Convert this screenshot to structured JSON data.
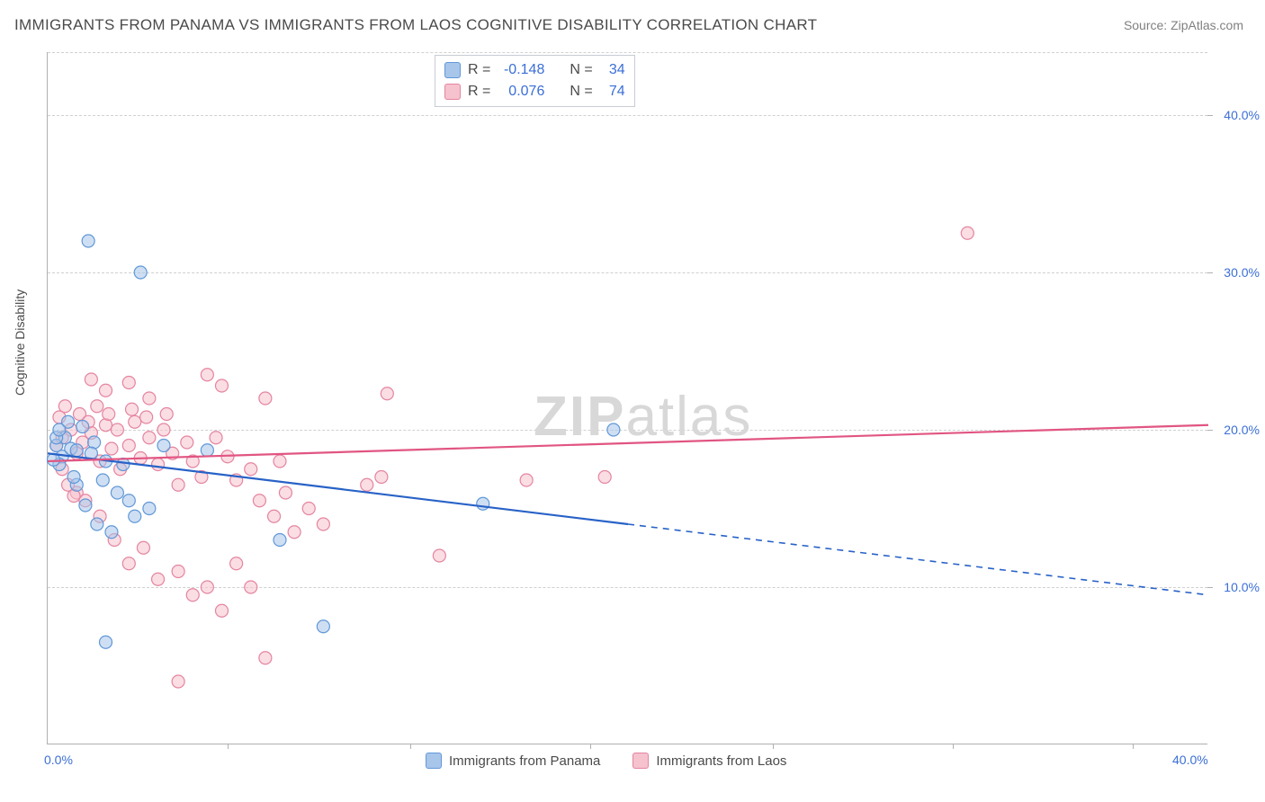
{
  "title": "IMMIGRANTS FROM PANAMA VS IMMIGRANTS FROM LAOS COGNITIVE DISABILITY CORRELATION CHART",
  "source": "Source: ZipAtlas.com",
  "ylabel": "Cognitive Disability",
  "watermark_zip": "ZIP",
  "watermark_atlas": "atlas",
  "xlim": [
    0,
    40
  ],
  "ylim": [
    0,
    44
  ],
  "xticks": [
    {
      "pos": 0,
      "label": "0.0%"
    },
    {
      "pos": 40,
      "label": "40.0%"
    }
  ],
  "xtick_marks": [
    6.2,
    12.5,
    18.7,
    25,
    31.2,
    37.4
  ],
  "yticks": [
    {
      "pos": 10,
      "label": "10.0%"
    },
    {
      "pos": 20,
      "label": "20.0%"
    },
    {
      "pos": 30,
      "label": "30.0%"
    },
    {
      "pos": 40,
      "label": "40.0%"
    }
  ],
  "gridlines": [
    10,
    20,
    30,
    40,
    44
  ],
  "series": [
    {
      "name": "Immigrants from Panama",
      "key": "panama",
      "color_fill": "#a8c5ea",
      "color_stroke": "#6098d8",
      "line_color": "#2862c7",
      "r_label": "R =",
      "r_value": "-0.148",
      "n_label": "N =",
      "n_value": "34",
      "regression": {
        "x1": 0,
        "y1": 18.5,
        "x2_solid": 20,
        "y2_solid": 14.0,
        "x2": 40,
        "y2": 9.5
      },
      "points": [
        [
          1.4,
          32.0
        ],
        [
          3.2,
          30.0
        ],
        [
          0.3,
          19.0
        ],
        [
          0.5,
          18.3
        ],
        [
          0.6,
          19.5
        ],
        [
          0.4,
          17.8
        ],
        [
          0.8,
          18.8
        ],
        [
          1.2,
          20.2
        ],
        [
          1.6,
          19.2
        ],
        [
          2.0,
          18.0
        ],
        [
          2.4,
          16.0
        ],
        [
          2.8,
          15.5
        ],
        [
          3.5,
          15.0
        ],
        [
          1.0,
          16.5
        ],
        [
          1.3,
          15.2
        ],
        [
          1.7,
          14.0
        ],
        [
          2.2,
          13.5
        ],
        [
          2.6,
          17.8
        ],
        [
          0.7,
          20.5
        ],
        [
          0.9,
          17.0
        ],
        [
          1.5,
          18.5
        ],
        [
          1.9,
          16.8
        ],
        [
          3.0,
          14.5
        ],
        [
          4.0,
          19.0
        ],
        [
          5.5,
          18.7
        ],
        [
          8.0,
          13.0
        ],
        [
          9.5,
          7.5
        ],
        [
          2.0,
          6.5
        ],
        [
          15.0,
          15.3
        ],
        [
          19.5,
          20.0
        ],
        [
          1.0,
          18.7
        ],
        [
          0.3,
          19.5
        ],
        [
          0.2,
          18.1
        ],
        [
          0.4,
          20.0
        ]
      ]
    },
    {
      "name": "Immigrants from Laos",
      "key": "laos",
      "color_fill": "#f5c2ce",
      "color_stroke": "#e584a0",
      "line_color": "#e15582",
      "r_label": "R =",
      "r_value": "0.076",
      "n_label": "N =",
      "n_value": "74",
      "regression": {
        "x1": 0,
        "y1": 18.0,
        "x2_solid": 40,
        "y2_solid": 20.3,
        "x2": 40,
        "y2": 20.3
      },
      "points": [
        [
          31.7,
          32.5
        ],
        [
          1.5,
          23.2
        ],
        [
          2.0,
          22.5
        ],
        [
          2.8,
          23.0
        ],
        [
          3.5,
          22.0
        ],
        [
          5.5,
          23.5
        ],
        [
          6.0,
          22.8
        ],
        [
          7.5,
          22.0
        ],
        [
          11.7,
          22.3
        ],
        [
          0.3,
          19.0
        ],
        [
          0.5,
          19.5
        ],
        [
          0.8,
          20.0
        ],
        [
          1.0,
          18.5
        ],
        [
          1.2,
          19.2
        ],
        [
          1.5,
          19.8
        ],
        [
          1.8,
          18.0
        ],
        [
          2.0,
          20.3
        ],
        [
          2.2,
          18.8
        ],
        [
          2.5,
          17.5
        ],
        [
          2.8,
          19.0
        ],
        [
          3.0,
          20.5
        ],
        [
          3.2,
          18.2
        ],
        [
          3.5,
          19.5
        ],
        [
          3.8,
          17.8
        ],
        [
          4.0,
          20.0
        ],
        [
          4.3,
          18.5
        ],
        [
          4.5,
          16.5
        ],
        [
          4.8,
          19.2
        ],
        [
          5.0,
          18.0
        ],
        [
          5.3,
          17.0
        ],
        [
          5.8,
          19.5
        ],
        [
          6.2,
          18.3
        ],
        [
          6.5,
          16.8
        ],
        [
          7.0,
          17.5
        ],
        [
          7.3,
          15.5
        ],
        [
          7.8,
          14.5
        ],
        [
          8.2,
          16.0
        ],
        [
          8.5,
          13.5
        ],
        [
          9.0,
          15.0
        ],
        [
          9.5,
          14.0
        ],
        [
          11.0,
          16.5
        ],
        [
          11.5,
          17.0
        ],
        [
          13.5,
          12.0
        ],
        [
          16.5,
          16.8
        ],
        [
          19.2,
          17.0
        ],
        [
          1.0,
          16.0
        ],
        [
          1.3,
          15.5
        ],
        [
          1.8,
          14.5
        ],
        [
          2.3,
          13.0
        ],
        [
          2.8,
          11.5
        ],
        [
          3.3,
          12.5
        ],
        [
          3.8,
          10.5
        ],
        [
          4.5,
          11.0
        ],
        [
          5.0,
          9.5
        ],
        [
          5.5,
          10.0
        ],
        [
          6.0,
          8.5
        ],
        [
          6.5,
          11.5
        ],
        [
          7.0,
          10.0
        ],
        [
          7.5,
          5.5
        ],
        [
          4.5,
          4.0
        ],
        [
          8.0,
          18.0
        ],
        [
          0.5,
          17.5
        ],
        [
          0.7,
          16.5
        ],
        [
          0.9,
          15.8
        ],
        [
          1.1,
          21.0
        ],
        [
          1.4,
          20.5
        ],
        [
          1.7,
          21.5
        ],
        [
          2.1,
          21.0
        ],
        [
          2.4,
          20.0
        ],
        [
          2.9,
          21.3
        ],
        [
          3.4,
          20.8
        ],
        [
          4.1,
          21.0
        ],
        [
          0.4,
          20.8
        ],
        [
          0.6,
          21.5
        ]
      ]
    }
  ],
  "marker_radius": 7,
  "marker_opacity": 0.55,
  "background_color": "#ffffff",
  "grid_color": "#d0d0d0",
  "axis_color": "#b0b0b0",
  "tick_color": "#3b6fd6",
  "text_color": "#4a4a4a"
}
